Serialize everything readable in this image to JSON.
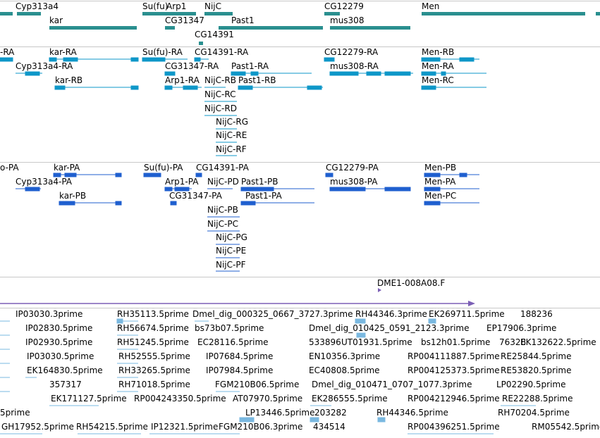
{
  "colors": {
    "gene": "#2a8f8f",
    "transcript": "#0e97c8",
    "protein": "#1f5fcf",
    "clone": "#7b5fb5",
    "est": "#7ab8e0",
    "divider": "#c8c8c8"
  },
  "genes": {
    "labels": [
      "Cyp313a4",
      "Su(fu)",
      "Arp1",
      "NijC",
      "CG12279",
      "Men",
      "kar",
      "CG31347",
      "Past1",
      "mus308",
      "CG14391"
    ]
  },
  "transcripts": {
    "labels": [
      "-RA",
      "kar-RA",
      "Su(fu)-RA",
      "CG14391-RA",
      "CG12279-RA",
      "Men-RB",
      "Cyp313a4-RA",
      "CG31347-RA",
      "Past1-RA",
      "mus308-RA",
      "Men-RA",
      "kar-RB",
      "Arp1-RA",
      "NijC-RB",
      "Past1-RB",
      "Men-RC",
      "NijC-RC",
      "NijC-RD",
      "NijC-RG",
      "NijC-RE",
      "NijC-RF"
    ]
  },
  "proteins": {
    "labels": [
      "o-PA",
      "kar-PA",
      "Su(fu)-PA",
      "CG14391-PA",
      "CG12279-PA",
      "Men-PB",
      "Cyp313a4-PA",
      "Arp1-PA",
      "NijC-PD",
      "Past1-PB",
      "mus308-PA",
      "Men-PA",
      "kar-PB",
      "CG31347-PA",
      "Past1-PA",
      "Men-PC",
      "NijC-PB",
      "NijC-PC",
      "NijC-PG",
      "NijC-PE",
      "NijC-PF"
    ]
  },
  "clones": {
    "labels": [
      "DME1-008A08.F"
    ]
  },
  "ests": {
    "labels": [
      "IP03030.3prime",
      "RH35113.5prime",
      "Dmel_dig_000325_0667_3727.3prime",
      "RH44346.3prime",
      "EK269711.5prime",
      "188236",
      "IP02830.5prime",
      "RH56674.5prime",
      "bs73b07.5prime",
      "Dmel_dig_010425_0591_2123.3prime",
      "EP17906.3prime",
      "IP02930.5prime",
      "RH51245.5prime",
      "EC28116.5prime",
      "533896",
      "UT01931.5prime",
      "bs12h01.5prime",
      "76328",
      "EK132622.5prime",
      "IP03030.5prime",
      "RH52555.5prime",
      "IP07684.5prime",
      "RP004111887.5prime",
      "RE25844.5prime",
      "EK164830.5prime",
      "RH33265.5prime",
      "IP07984.5prime",
      "EN10356.3prime",
      "EC40808.5prime",
      "RP004125373.5prime",
      "RE53820.5prime",
      "357317",
      "RH71018.5prime",
      "FGM210B06.5prime",
      "Dmel_dig_010471_0707_1077.3prime",
      "LP02290.5prime",
      "EK171127.5prime",
      "RP004243350.5prime",
      "AT07970.5prime",
      "EK286555.5prime",
      "RP004212946.5prime",
      "RE22288.5prime",
      "5prime",
      "LP13446.5prime",
      "203282",
      "RH44346.5prime",
      "RH70204.5prime",
      "GH17952.5prime",
      "RH54215.5prime",
      "IP12321.5prime",
      "FGM210B06.3prime",
      "434514",
      "RP004396251.5prime",
      "RM05542.5prime"
    ]
  }
}
